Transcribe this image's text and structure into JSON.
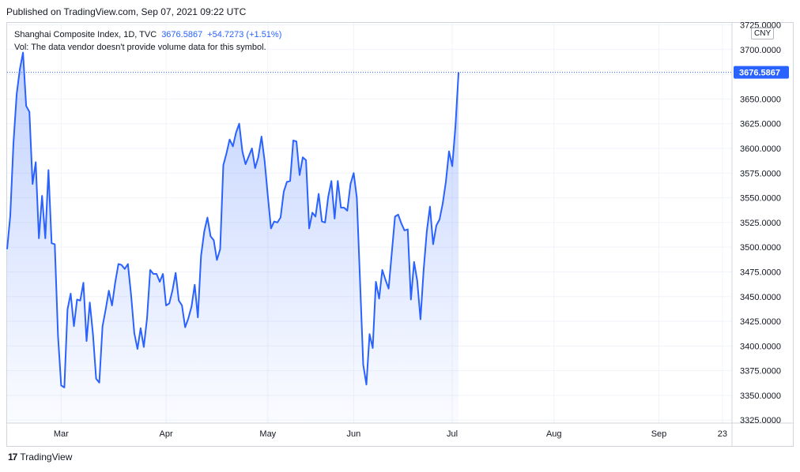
{
  "published_text": "Published on TradingView.com, Sep 07, 2021 09:22 UTC",
  "legend": {
    "symbol": "Shanghai Composite Index, 1D, TVC",
    "last": "3676.5867",
    "change": "+54.7273 (+1.51%)",
    "volume_note": "Vol: The data vendor doesn't provide volume data for this symbol."
  },
  "currency_label": "CNY",
  "price_label": "3676.5867",
  "footer_brand": "TradingView",
  "colors": {
    "line": "#2962ff",
    "area_top": "#2962ff",
    "grid": "#f0f3fa",
    "price_label_bg": "#2962ff"
  },
  "chart_data": {
    "type": "area",
    "title": "Shanghai Composite Index, 1D, TVC",
    "y_ticks": [
      "3325.0000",
      "3350.0000",
      "3375.0000",
      "3400.0000",
      "3425.0000",
      "3450.0000",
      "3475.0000",
      "3500.0000",
      "3525.0000",
      "3550.0000",
      "3575.0000",
      "3600.0000",
      "3625.0000",
      "3650.0000",
      "3675.0000",
      "3700.0000",
      "3725.0000"
    ],
    "ylim": [
      3322,
      3727
    ],
    "x_ticks": [
      {
        "label": "Mar",
        "t": 17
      },
      {
        "label": "Apr",
        "t": 50
      },
      {
        "label": "May",
        "t": 82
      },
      {
        "label": "Jun",
        "t": 109
      },
      {
        "label": "Jul",
        "t": 140
      },
      {
        "label": "Aug",
        "t": 172
      },
      {
        "label": "Sep",
        "t": 205
      },
      {
        "label": "23",
        "t": 225
      }
    ],
    "xlim": [
      0,
      228
    ],
    "points": [
      [
        0,
        3498
      ],
      [
        1,
        3532
      ],
      [
        2,
        3605
      ],
      [
        3,
        3655
      ],
      [
        4,
        3680
      ],
      [
        5,
        3697
      ],
      [
        6,
        3643
      ],
      [
        7,
        3637
      ],
      [
        8,
        3564
      ],
      [
        9,
        3586
      ],
      [
        10,
        3509
      ],
      [
        11,
        3552
      ],
      [
        12,
        3509
      ],
      [
        13,
        3578
      ],
      [
        14,
        3504
      ],
      [
        15,
        3503
      ],
      [
        16,
        3410
      ],
      [
        17,
        3360
      ],
      [
        18,
        3358
      ],
      [
        19,
        3437
      ],
      [
        20,
        3453
      ],
      [
        21,
        3420
      ],
      [
        22,
        3447
      ],
      [
        23,
        3446
      ],
      [
        24,
        3464
      ],
      [
        25,
        3405
      ],
      [
        26,
        3444
      ],
      [
        27,
        3412
      ],
      [
        28,
        3367
      ],
      [
        29,
        3363
      ],
      [
        30,
        3420
      ],
      [
        31,
        3437
      ],
      [
        32,
        3456
      ],
      [
        33,
        3441
      ],
      [
        34,
        3464
      ],
      [
        35,
        3483
      ],
      [
        36,
        3482
      ],
      [
        37,
        3478
      ],
      [
        38,
        3483
      ],
      [
        39,
        3451
      ],
      [
        40,
        3413
      ],
      [
        41,
        3397
      ],
      [
        42,
        3418
      ],
      [
        43,
        3399
      ],
      [
        44,
        3428
      ],
      [
        45,
        3477
      ],
      [
        46,
        3473
      ],
      [
        47,
        3473
      ],
      [
        48,
        3465
      ],
      [
        49,
        3473
      ],
      [
        50,
        3441
      ],
      [
        51,
        3443
      ],
      [
        52,
        3456
      ],
      [
        53,
        3474
      ],
      [
        54,
        3446
      ],
      [
        55,
        3441
      ],
      [
        56,
        3419
      ],
      [
        57,
        3428
      ],
      [
        58,
        3440
      ],
      [
        59,
        3462
      ],
      [
        60,
        3429
      ],
      [
        61,
        3491
      ],
      [
        62,
        3516
      ],
      [
        63,
        3530
      ],
      [
        64,
        3511
      ],
      [
        65,
        3507
      ],
      [
        66,
        3487
      ],
      [
        67,
        3498
      ],
      [
        68,
        3583
      ],
      [
        69,
        3595
      ],
      [
        70,
        3609
      ],
      [
        71,
        3602
      ],
      [
        72,
        3616
      ],
      [
        73,
        3625
      ],
      [
        74,
        3597
      ],
      [
        75,
        3584
      ],
      [
        76,
        3592
      ],
      [
        77,
        3600
      ],
      [
        78,
        3580
      ],
      [
        79,
        3591
      ],
      [
        80,
        3612
      ],
      [
        81,
        3587
      ],
      [
        82,
        3552
      ],
      [
        83,
        3519
      ],
      [
        84,
        3526
      ],
      [
        85,
        3525
      ],
      [
        86,
        3530
      ],
      [
        87,
        3556
      ],
      [
        88,
        3566
      ],
      [
        89,
        3567
      ],
      [
        90,
        3608
      ],
      [
        91,
        3607
      ],
      [
        92,
        3573
      ],
      [
        93,
        3591
      ],
      [
        94,
        3588
      ],
      [
        95,
        3519
      ],
      [
        96,
        3535
      ],
      [
        97,
        3531
      ],
      [
        98,
        3554
      ],
      [
        99,
        3526
      ],
      [
        100,
        3525
      ],
      [
        101,
        3551
      ],
      [
        102,
        3567
      ],
      [
        103,
        3529
      ],
      [
        104,
        3567
      ],
      [
        105,
        3540
      ],
      [
        106,
        3540
      ],
      [
        107,
        3537
      ],
      [
        108,
        3564
      ],
      [
        109,
        3575
      ],
      [
        110,
        3550
      ],
      [
        111,
        3467
      ],
      [
        112,
        3381
      ],
      [
        113,
        3361
      ],
      [
        114,
        3412
      ],
      [
        115,
        3398
      ],
      [
        116,
        3465
      ],
      [
        117,
        3448
      ],
      [
        118,
        3477
      ],
      [
        119,
        3467
      ],
      [
        120,
        3458
      ],
      [
        121,
        3495
      ],
      [
        122,
        3531
      ],
      [
        123,
        3533
      ],
      [
        124,
        3524
      ],
      [
        125,
        3517
      ],
      [
        126,
        3518
      ],
      [
        127,
        3447
      ],
      [
        128,
        3485
      ],
      [
        129,
        3466
      ],
      [
        130,
        3427
      ],
      [
        131,
        3477
      ],
      [
        132,
        3516
      ],
      [
        133,
        3541
      ],
      [
        134,
        3503
      ],
      [
        135,
        3522
      ],
      [
        136,
        3528
      ],
      [
        137,
        3544
      ],
      [
        138,
        3566
      ],
      [
        139,
        3597
      ],
      [
        140,
        3582
      ],
      [
        141,
        3622
      ],
      [
        142,
        3677
      ]
    ]
  }
}
